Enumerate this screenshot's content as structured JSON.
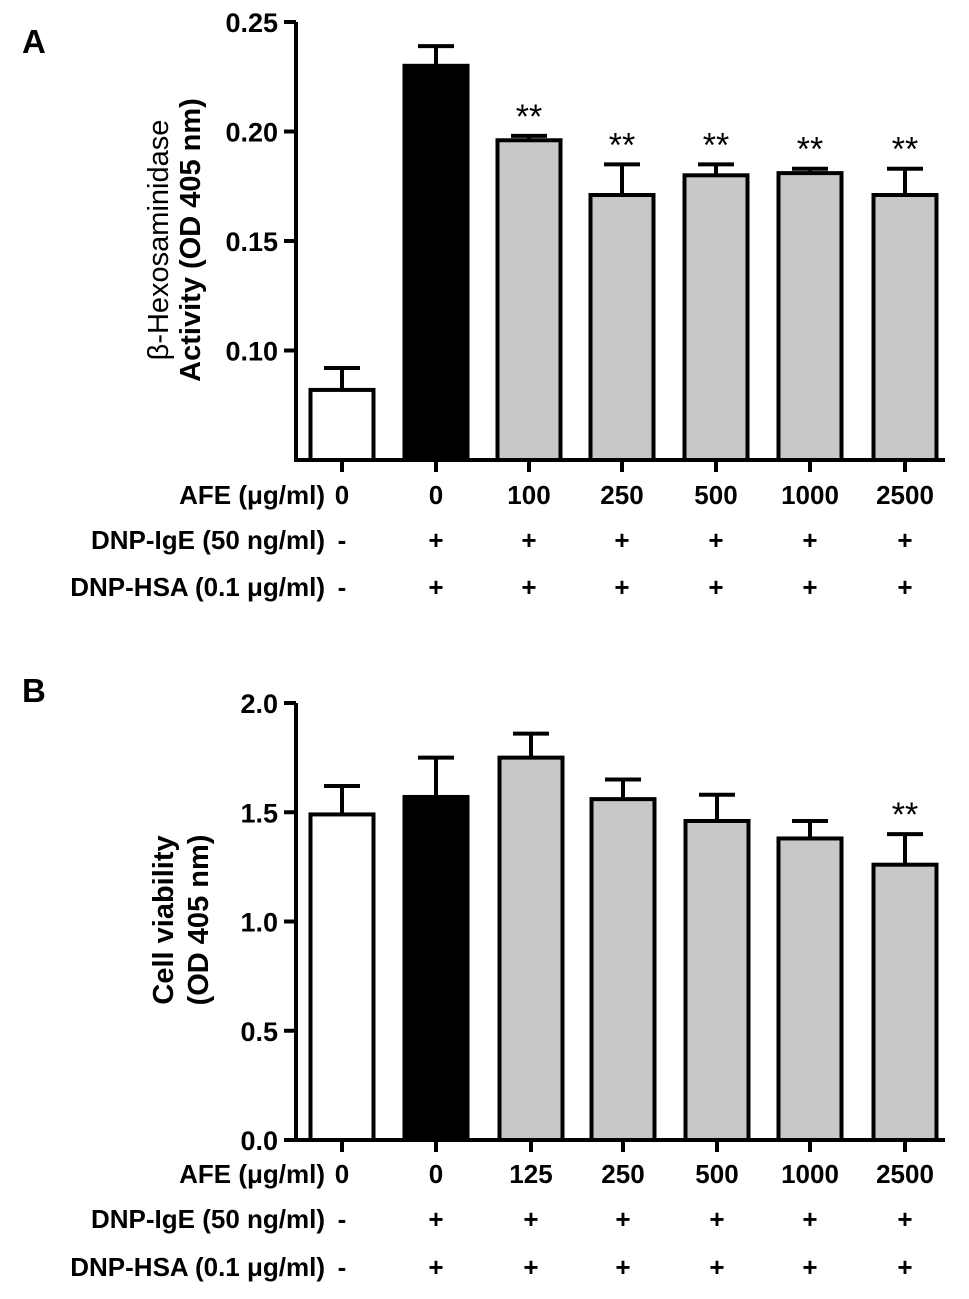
{
  "chart_data": [
    {
      "type": "bar",
      "panel": "A",
      "ylabel_line1": "β-Hexosaminidase",
      "ylabel_line2": "Activity (OD 405 nm)",
      "ylim": [
        0.05,
        0.25
      ],
      "yticks": [
        0.1,
        0.15,
        0.2,
        0.25
      ],
      "ytick_labels": [
        "0.10",
        "0.15",
        "0.20",
        "0.25"
      ],
      "grid": false,
      "values": [
        0.082,
        0.23,
        0.196,
        0.171,
        0.18,
        0.181,
        0.171
      ],
      "errors": [
        0.01,
        0.009,
        0.002,
        0.014,
        0.005,
        0.002,
        0.012
      ],
      "significance": [
        "",
        "",
        "**",
        "**",
        "**",
        "**",
        "**"
      ],
      "bar_colors": [
        "#ffffff",
        "#000000",
        "#c8c8c8",
        "#c8c8c8",
        "#c8c8c8",
        "#c8c8c8",
        "#c8c8c8"
      ],
      "rows": [
        {
          "label": "AFE (μg/ml)",
          "cells": [
            "0",
            "0",
            "100",
            "250",
            "500",
            "1000",
            "2500"
          ]
        },
        {
          "label": "DNP-IgE (50 ng/ml)",
          "cells": [
            "-",
            "+",
            "+",
            "+",
            "+",
            "+",
            "+"
          ]
        },
        {
          "label": "DNP-HSA (0.1 μg/ml)",
          "cells": [
            "-",
            "+",
            "+",
            "+",
            "+",
            "+",
            "+"
          ]
        }
      ]
    },
    {
      "type": "bar",
      "panel": "B",
      "ylabel_line1": "Cell viability",
      "ylabel_line2": "(OD 405 nm)",
      "ylim": [
        0.0,
        2.0
      ],
      "yticks": [
        0.0,
        0.5,
        1.0,
        1.5,
        2.0
      ],
      "ytick_labels": [
        "0.0",
        "0.5",
        "1.0",
        "1.5",
        "2.0"
      ],
      "grid": false,
      "values": [
        1.49,
        1.57,
        1.75,
        1.56,
        1.46,
        1.38,
        1.26
      ],
      "errors": [
        0.13,
        0.18,
        0.11,
        0.09,
        0.12,
        0.08,
        0.14
      ],
      "significance": [
        "",
        "",
        "",
        "",
        "",
        "",
        "**"
      ],
      "bar_colors": [
        "#ffffff",
        "#000000",
        "#c8c8c8",
        "#c8c8c8",
        "#c8c8c8",
        "#c8c8c8",
        "#c8c8c8"
      ],
      "rows": [
        {
          "label": "AFE (μg/ml)",
          "cells": [
            "0",
            "0",
            "125",
            "250",
            "500",
            "1000",
            "2500"
          ]
        },
        {
          "label": "DNP-IgE (50 ng/ml)",
          "cells": [
            "-",
            "+",
            "+",
            "+",
            "+",
            "+",
            "+"
          ]
        },
        {
          "label": "DNP-HSA (0.1 μg/ml)",
          "cells": [
            "-",
            "+",
            "+",
            "+",
            "+",
            "+",
            "+"
          ]
        }
      ]
    }
  ]
}
